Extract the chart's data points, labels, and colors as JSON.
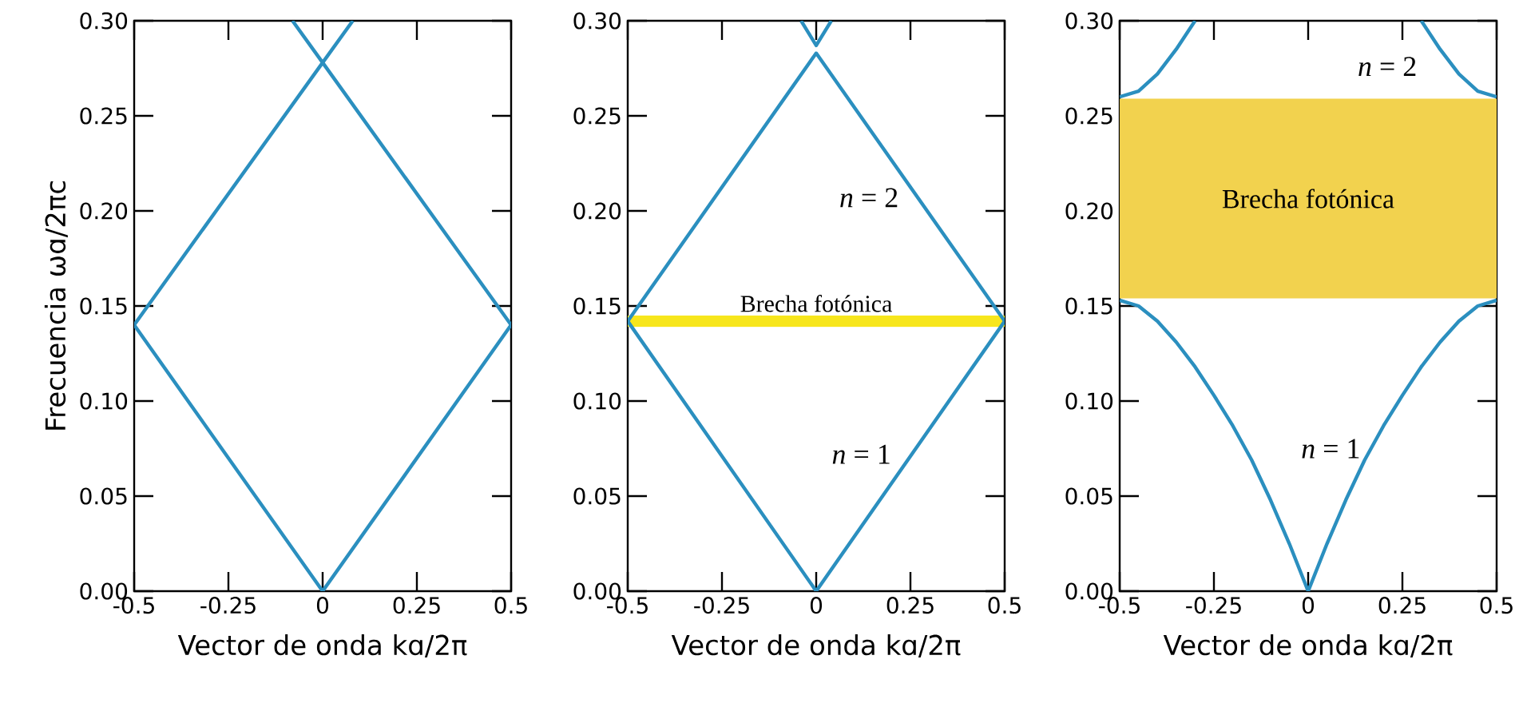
{
  "chart_data": [
    {
      "type": "line",
      "xlabel": "Vector de onda  kɑ/2π",
      "ylabel": "Frecuencia ωɑ/2πc",
      "xlim": [
        -0.5,
        0.5
      ],
      "ylim": [
        0,
        0.3
      ],
      "xticks": [
        -0.5,
        -0.25,
        0,
        0.25,
        0.5
      ],
      "yticks": [
        {
          "value": 0,
          "label": "0.00"
        },
        {
          "value": 0.05,
          "label": "0.05"
        },
        {
          "value": 0.1,
          "label": "0.10"
        },
        {
          "value": 0.15,
          "label": "0.15"
        },
        {
          "value": 0.2,
          "label": "0.20"
        },
        {
          "value": 0.25,
          "label": "0.25"
        },
        {
          "value": 0.3,
          "label": "0.30"
        }
      ],
      "series": [
        {
          "color": "#2b8fbf",
          "x": [
            -0.5,
            0,
            0.5
          ],
          "values": [
            0.14,
            0,
            0.14
          ]
        },
        {
          "color": "#2b8fbf",
          "x": [
            -0.5,
            0,
            0.08
          ],
          "values": [
            0.14,
            0.278,
            0.3
          ]
        },
        {
          "color": "#2b8fbf",
          "x": [
            0.5,
            0,
            -0.08
          ],
          "values": [
            0.14,
            0.278,
            0.3
          ]
        }
      ]
    },
    {
      "type": "line",
      "xlabel": "Vector de onda  kɑ/2π",
      "xlim": [
        -0.5,
        0.5
      ],
      "ylim": [
        0,
        0.3
      ],
      "xticks": [
        -0.5,
        -0.25,
        0,
        0.25,
        0.5
      ],
      "yticks": [
        {
          "value": 0,
          "label": "0.00"
        },
        {
          "value": 0.05,
          "label": "0.05"
        },
        {
          "value": 0.1,
          "label": "0.10"
        },
        {
          "value": 0.15,
          "label": "0.15"
        },
        {
          "value": 0.2,
          "label": "0.20"
        },
        {
          "value": 0.25,
          "label": "0.25"
        },
        {
          "value": 0.3,
          "label": "0.30"
        }
      ],
      "bands": [
        {
          "axis": "y",
          "from": 0.139,
          "to": 0.145,
          "label": "Brecha fotónica",
          "color": "#f7e61c"
        }
      ],
      "annotations": [
        "*n* = 2",
        "*n* = 1"
      ],
      "series": [
        {
          "color": "#2b8fbf",
          "x": [
            -0.5,
            0,
            0.5
          ],
          "values": [
            0.142,
            0,
            0.142
          ]
        },
        {
          "color": "#2b8fbf",
          "x": [
            -0.5,
            0,
            0.5
          ],
          "values": [
            0.142,
            0.283,
            0.142
          ]
        },
        {
          "color": "#2b8fbf",
          "x": [
            -0.04,
            0,
            0.04
          ],
          "values": [
            0.3,
            0.287,
            0.3
          ]
        }
      ]
    },
    {
      "type": "line",
      "xlabel": "Vector de onda  kɑ/2π",
      "xlim": [
        -0.5,
        0.5
      ],
      "ylim": [
        0,
        0.3
      ],
      "xticks": [
        -0.5,
        -0.25,
        0,
        0.25,
        0.5
      ],
      "yticks": [
        {
          "value": 0,
          "label": "0.00"
        },
        {
          "value": 0.05,
          "label": "0.05"
        },
        {
          "value": 0.1,
          "label": "0.10"
        },
        {
          "value": 0.15,
          "label": "0.15"
        },
        {
          "value": 0.2,
          "label": "0.20"
        },
        {
          "value": 0.25,
          "label": "0.25"
        },
        {
          "value": 0.3,
          "label": "0.30"
        }
      ],
      "bands": [
        {
          "axis": "y",
          "from": 0.154,
          "to": 0.259,
          "label": "Brecha fotónica",
          "color": "#f2d24e"
        }
      ],
      "annotations": [
        "*n* = 2",
        "*n* = 1"
      ],
      "series": [
        {
          "color": "#2b8fbf",
          "x": [
            -0.5,
            -0.45,
            -0.4,
            -0.35,
            -0.3,
            -0.25,
            -0.2,
            -0.15,
            -0.1,
            -0.05,
            0,
            0.05,
            0.1,
            0.15,
            0.2,
            0.25,
            0.3,
            0.35,
            0.4,
            0.45,
            0.5
          ],
          "values": [
            0.153,
            0.15,
            0.142,
            0.131,
            0.118,
            0.103,
            0.087,
            0.069,
            0.048,
            0.025,
            0,
            0.025,
            0.048,
            0.069,
            0.087,
            0.103,
            0.118,
            0.131,
            0.142,
            0.15,
            0.153
          ]
        },
        {
          "color": "#2b8fbf",
          "x": [
            -0.5,
            -0.45,
            -0.4,
            -0.35,
            -0.3
          ],
          "values": [
            0.26,
            0.263,
            0.272,
            0.285,
            0.3
          ]
        },
        {
          "color": "#2b8fbf",
          "x": [
            0.3,
            0.35,
            0.4,
            0.45,
            0.5
          ],
          "values": [
            0.3,
            0.285,
            0.272,
            0.263,
            0.26
          ]
        }
      ]
    }
  ]
}
